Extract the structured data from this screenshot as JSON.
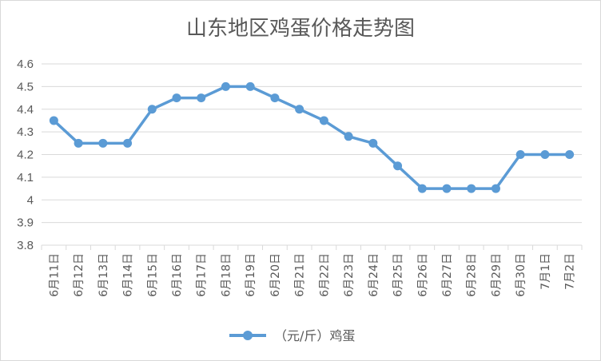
{
  "chart_data": {
    "type": "line",
    "title": "山东地区鸡蛋价格走势图",
    "categories": [
      "6月11日",
      "6月12日",
      "6月13日",
      "6月14日",
      "6月15日",
      "6月16日",
      "6月17日",
      "6月18日",
      "6月19日",
      "6月20日",
      "6月21日",
      "6月22日",
      "6月23日",
      "6月24日",
      "6月25日",
      "6月26日",
      "6月27日",
      "6月28日",
      "6月29日",
      "6月30日",
      "7月1日",
      "7月2日"
    ],
    "series": [
      {
        "name": "（元/斤）鸡蛋",
        "values": [
          4.35,
          4.25,
          4.25,
          4.25,
          4.4,
          4.45,
          4.45,
          4.5,
          4.5,
          4.45,
          4.4,
          4.35,
          4.28,
          4.25,
          4.15,
          4.05,
          4.05,
          4.05,
          4.05,
          4.2,
          4.2,
          4.2
        ]
      }
    ],
    "ylim": [
      3.8,
      4.6
    ],
    "yticks": [
      "3.8",
      "3.9",
      "4",
      "4.1",
      "4.2",
      "4.3",
      "4.4",
      "4.5",
      "4.6"
    ],
    "xlabel": "",
    "ylabel": "",
    "grid": true,
    "legend_position": "bottom",
    "series_color": "#5b9bd5"
  }
}
